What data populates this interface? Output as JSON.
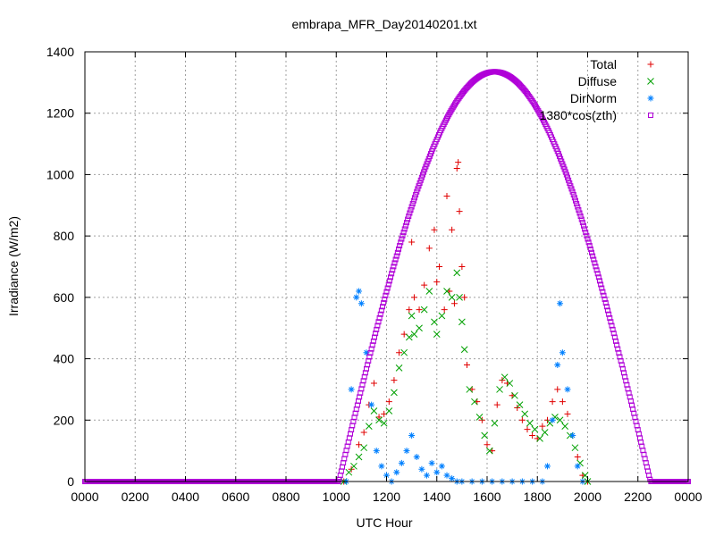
{
  "chart_data": {
    "type": "scatter",
    "title": "embrapa_MFR_Day20140201.txt",
    "xlabel": "UTC Hour",
    "ylabel": "Irradiance (W/m2)",
    "xlim": [
      0,
      24
    ],
    "ylim": [
      0,
      1400
    ],
    "x_ticks": [
      "0000",
      "0200",
      "0400",
      "0600",
      "0800",
      "1000",
      "1200",
      "1400",
      "1600",
      "1800",
      "2000",
      "2200",
      "0000"
    ],
    "y_ticks": [
      "0",
      "200",
      "400",
      "600",
      "800",
      "1000",
      "1200",
      "1400"
    ],
    "grid": true,
    "legend_position": "top-right",
    "series": [
      {
        "name": "Total",
        "marker": "+",
        "color": "#e00000",
        "points": [
          [
            10.3,
            0
          ],
          [
            10.6,
            40
          ],
          [
            10.9,
            120
          ],
          [
            11.1,
            160
          ],
          [
            11.3,
            250
          ],
          [
            11.5,
            320
          ],
          [
            11.7,
            210
          ],
          [
            11.9,
            220
          ],
          [
            12.1,
            260
          ],
          [
            12.3,
            330
          ],
          [
            12.5,
            420
          ],
          [
            12.7,
            480
          ],
          [
            12.9,
            560
          ],
          [
            13.0,
            780
          ],
          [
            13.1,
            600
          ],
          [
            13.3,
            560
          ],
          [
            13.5,
            640
          ],
          [
            13.7,
            760
          ],
          [
            13.9,
            820
          ],
          [
            14.0,
            650
          ],
          [
            14.1,
            700
          ],
          [
            14.3,
            560
          ],
          [
            14.4,
            930
          ],
          [
            14.5,
            620
          ],
          [
            14.6,
            820
          ],
          [
            14.7,
            580
          ],
          [
            14.8,
            1020
          ],
          [
            14.85,
            1040
          ],
          [
            14.9,
            880
          ],
          [
            15.0,
            700
          ],
          [
            15.1,
            600
          ],
          [
            15.2,
            380
          ],
          [
            15.4,
            300
          ],
          [
            15.6,
            260
          ],
          [
            15.8,
            200
          ],
          [
            16.0,
            120
          ],
          [
            16.2,
            100
          ],
          [
            16.4,
            250
          ],
          [
            16.6,
            330
          ],
          [
            16.8,
            320
          ],
          [
            17.0,
            280
          ],
          [
            17.2,
            240
          ],
          [
            17.4,
            200
          ],
          [
            17.6,
            170
          ],
          [
            17.8,
            150
          ],
          [
            18.0,
            140
          ],
          [
            18.2,
            180
          ],
          [
            18.4,
            200
          ],
          [
            18.6,
            260
          ],
          [
            18.8,
            300
          ],
          [
            19.0,
            260
          ],
          [
            19.2,
            220
          ],
          [
            19.4,
            150
          ],
          [
            19.6,
            80
          ],
          [
            19.8,
            20
          ],
          [
            20.0,
            0
          ]
        ]
      },
      {
        "name": "Diffuse",
        "marker": "x",
        "color": "#00a000",
        "points": [
          [
            10.3,
            0
          ],
          [
            10.5,
            30
          ],
          [
            10.7,
            50
          ],
          [
            10.9,
            80
          ],
          [
            11.1,
            110
          ],
          [
            11.3,
            180
          ],
          [
            11.5,
            230
          ],
          [
            11.7,
            200
          ],
          [
            11.9,
            190
          ],
          [
            12.1,
            230
          ],
          [
            12.3,
            290
          ],
          [
            12.5,
            370
          ],
          [
            12.7,
            420
          ],
          [
            12.9,
            470
          ],
          [
            13.0,
            540
          ],
          [
            13.1,
            480
          ],
          [
            13.3,
            500
          ],
          [
            13.5,
            560
          ],
          [
            13.7,
            620
          ],
          [
            13.9,
            520
          ],
          [
            14.0,
            480
          ],
          [
            14.2,
            540
          ],
          [
            14.4,
            620
          ],
          [
            14.6,
            600
          ],
          [
            14.8,
            680
          ],
          [
            14.9,
            600
          ],
          [
            15.0,
            520
          ],
          [
            15.1,
            430
          ],
          [
            15.3,
            300
          ],
          [
            15.5,
            260
          ],
          [
            15.7,
            210
          ],
          [
            15.9,
            150
          ],
          [
            16.1,
            100
          ],
          [
            16.3,
            190
          ],
          [
            16.5,
            300
          ],
          [
            16.7,
            340
          ],
          [
            16.9,
            320
          ],
          [
            17.1,
            280
          ],
          [
            17.3,
            250
          ],
          [
            17.5,
            220
          ],
          [
            17.7,
            190
          ],
          [
            17.9,
            170
          ],
          [
            18.1,
            140
          ],
          [
            18.3,
            160
          ],
          [
            18.5,
            190
          ],
          [
            18.7,
            210
          ],
          [
            18.9,
            200
          ],
          [
            19.1,
            180
          ],
          [
            19.3,
            150
          ],
          [
            19.5,
            110
          ],
          [
            19.7,
            60
          ],
          [
            19.9,
            20
          ],
          [
            20.0,
            0
          ]
        ]
      },
      {
        "name": "DirNorm",
        "marker": "*",
        "color": "#0080ff",
        "points": [
          [
            10.4,
            0
          ],
          [
            10.6,
            300
          ],
          [
            10.8,
            600
          ],
          [
            10.9,
            620
          ],
          [
            11.0,
            580
          ],
          [
            11.2,
            420
          ],
          [
            11.4,
            250
          ],
          [
            11.6,
            100
          ],
          [
            11.8,
            50
          ],
          [
            12.0,
            20
          ],
          [
            12.2,
            0
          ],
          [
            12.4,
            30
          ],
          [
            12.6,
            60
          ],
          [
            12.8,
            100
          ],
          [
            13.0,
            150
          ],
          [
            13.2,
            80
          ],
          [
            13.4,
            40
          ],
          [
            13.6,
            20
          ],
          [
            13.8,
            60
          ],
          [
            14.0,
            30
          ],
          [
            14.2,
            50
          ],
          [
            14.4,
            20
          ],
          [
            14.6,
            10
          ],
          [
            14.8,
            0
          ],
          [
            15.0,
            0
          ],
          [
            15.4,
            0
          ],
          [
            15.8,
            0
          ],
          [
            16.2,
            0
          ],
          [
            16.6,
            0
          ],
          [
            17.0,
            0
          ],
          [
            17.4,
            0
          ],
          [
            17.8,
            0
          ],
          [
            18.2,
            0
          ],
          [
            18.4,
            50
          ],
          [
            18.6,
            200
          ],
          [
            18.8,
            380
          ],
          [
            18.9,
            580
          ],
          [
            19.0,
            420
          ],
          [
            19.2,
            300
          ],
          [
            19.4,
            150
          ],
          [
            19.6,
            50
          ],
          [
            19.8,
            0
          ]
        ]
      },
      {
        "name": "1380*cos(zth)",
        "marker": "square",
        "color": "#b000d8",
        "amplitude": 1335,
        "peak_x": 16.3,
        "half_width": 6.2
      }
    ]
  }
}
